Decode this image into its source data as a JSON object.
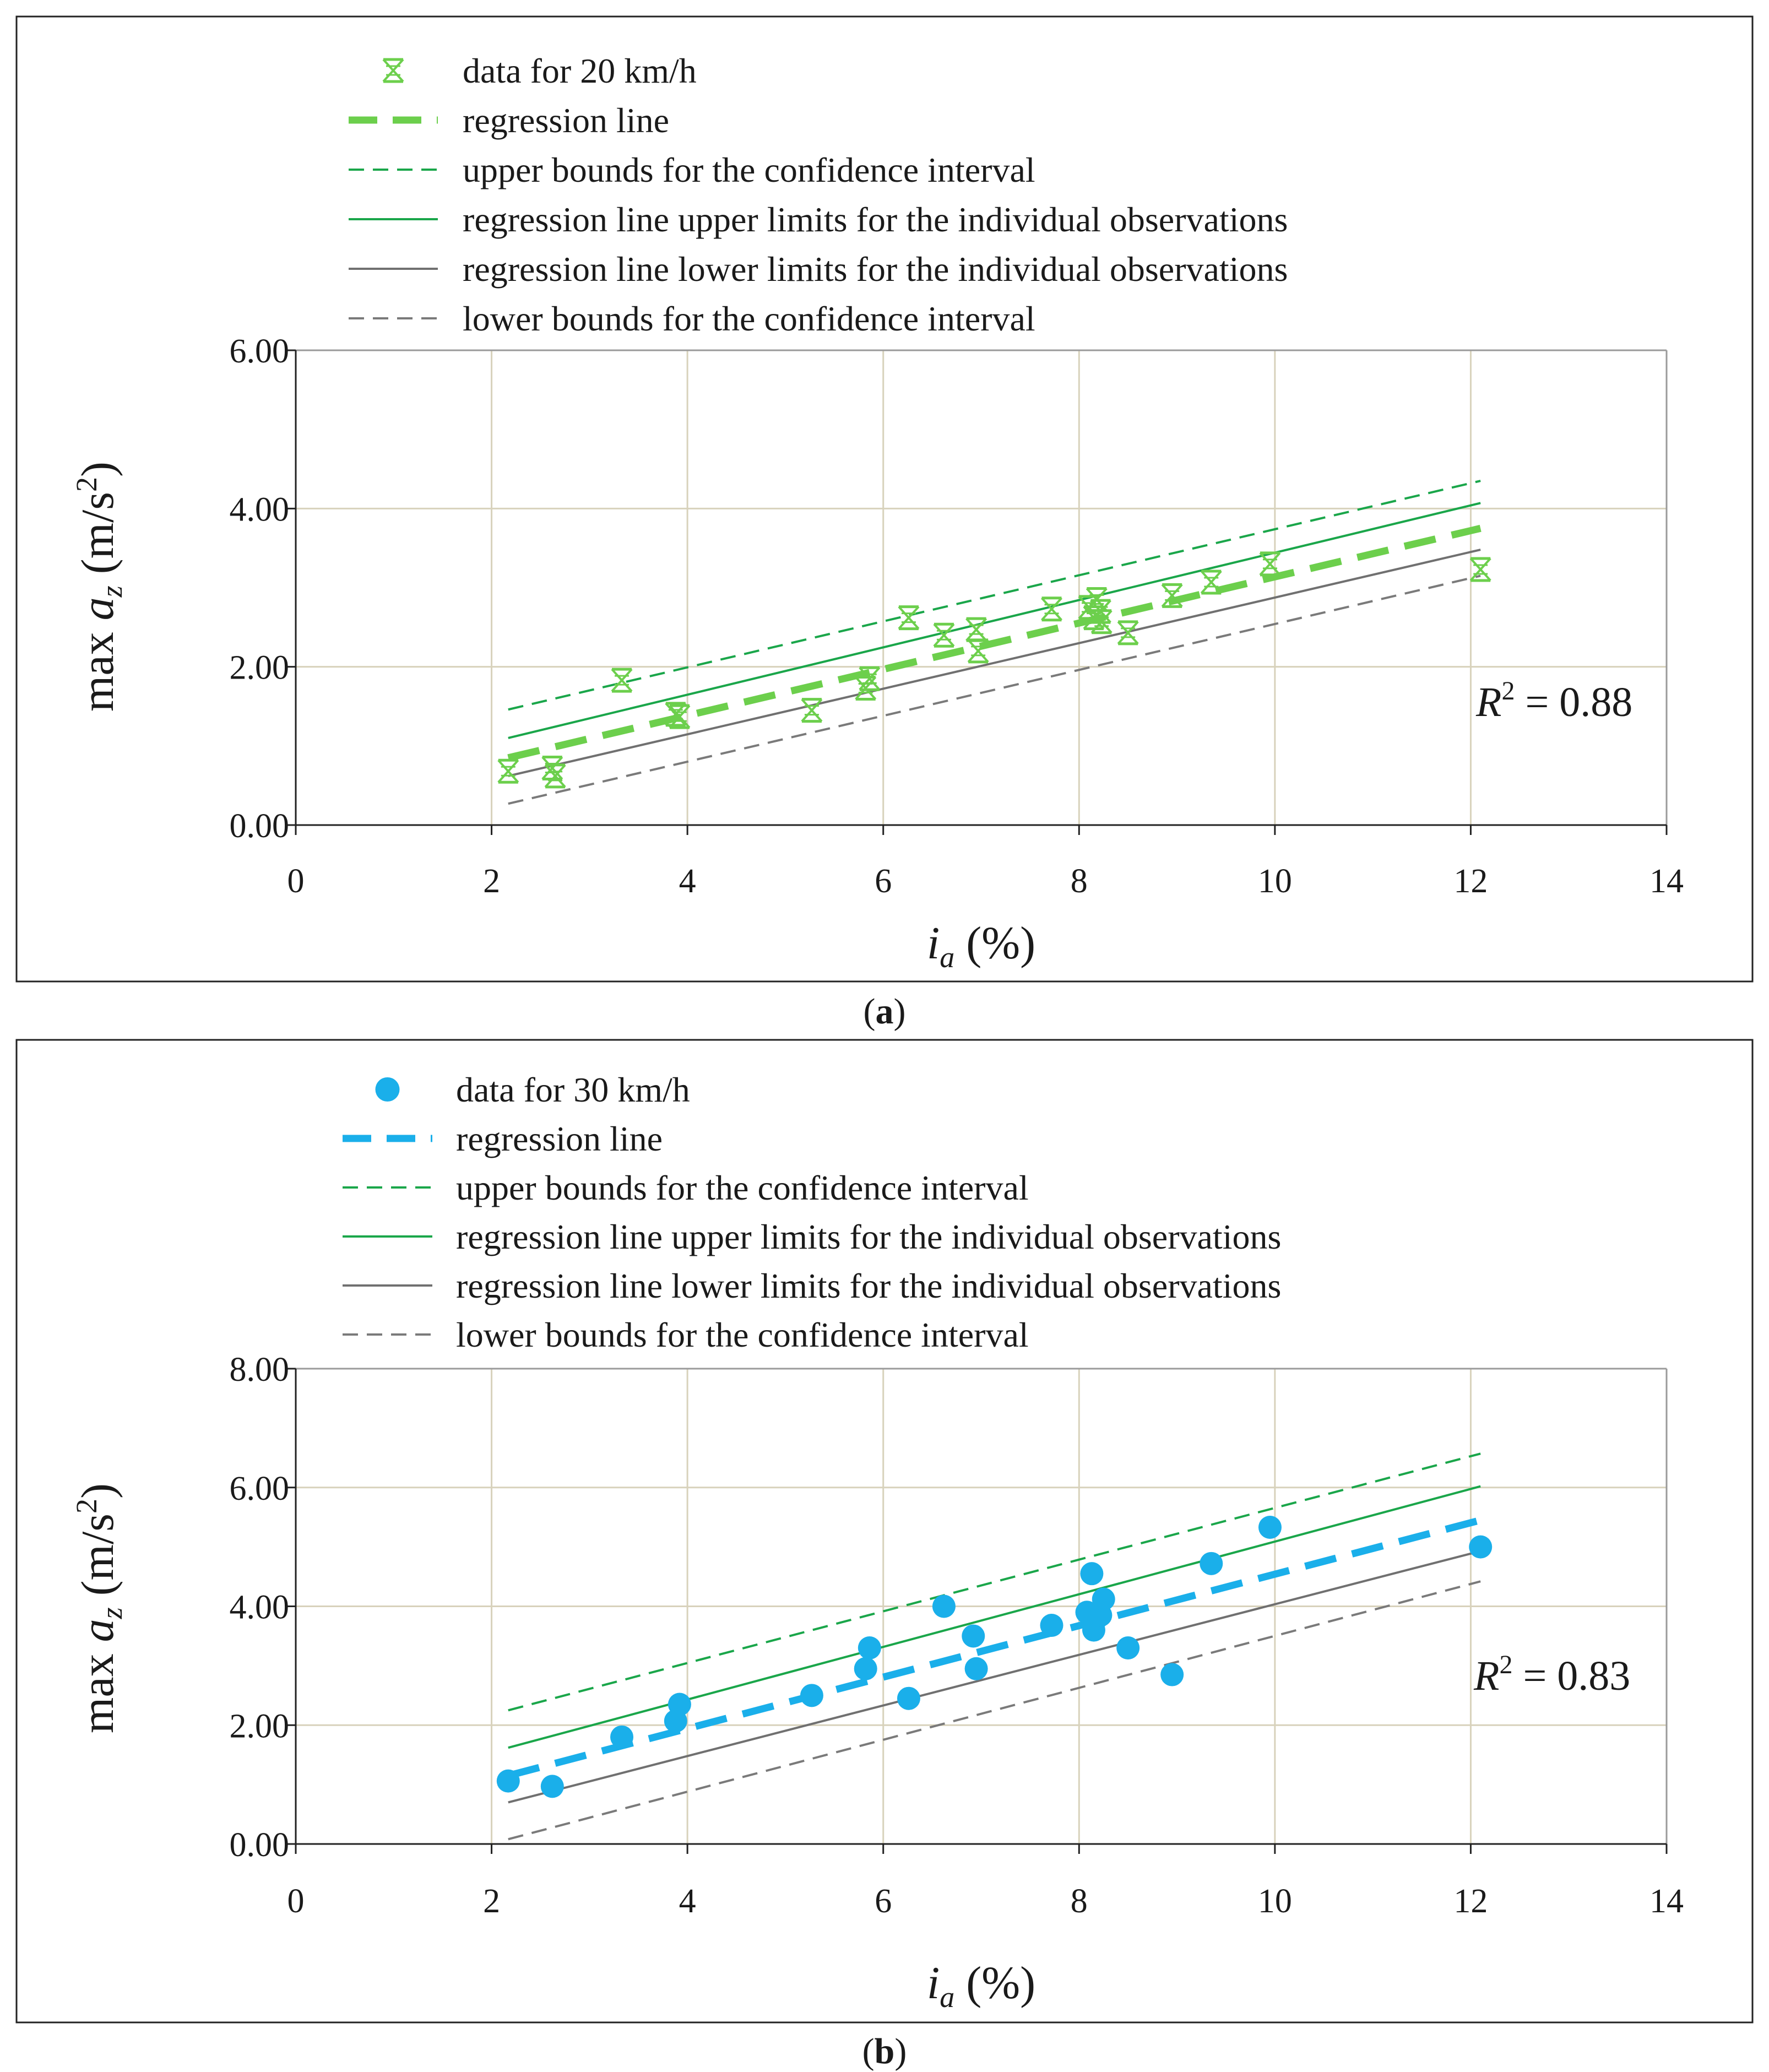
{
  "chart_data": [
    {
      "type": "scatter",
      "panel_label": "a",
      "xlabel_main": "i",
      "xlabel_sub": "a",
      "xlabel_unit": " (%)",
      "ylabel_prefix": "max ",
      "ylabel_var": "a",
      "ylabel_sub": "z",
      "ylabel_unit_open": " (m/s",
      "ylabel_unit_sup": "2",
      "ylabel_unit_close": ")",
      "xlim": [
        0,
        14
      ],
      "ylim": [
        0,
        6
      ],
      "xticks": [
        0,
        2,
        4,
        6,
        8,
        10,
        12,
        14
      ],
      "yticks": [
        0,
        2,
        4,
        6
      ],
      "xtick_labels": [
        "0",
        "2",
        "4",
        "6",
        "8",
        "10",
        "12",
        "14"
      ],
      "ytick_labels": [
        "0.00",
        "2.00",
        "4.00",
        "6.00"
      ],
      "grid": true,
      "legend_position": "top-center above plot",
      "r2_label": "R",
      "r2_sup": "2",
      "r2_value": " = 0.88",
      "points": {
        "name": "data for 20 km/h",
        "color": "#6ccf4c",
        "marker": "hourglass-box",
        "x": [
          2.17,
          2.62,
          2.65,
          3.33,
          3.88,
          3.92,
          5.27,
          5.82,
          5.86,
          6.26,
          6.62,
          6.95,
          6.97,
          7.72,
          8.1,
          8.15,
          8.18,
          8.22,
          8.23,
          8.5,
          8.95,
          9.35,
          9.95,
          12.1
        ],
        "y": [
          0.68,
          0.72,
          0.62,
          1.83,
          1.4,
          1.37,
          1.45,
          1.73,
          1.85,
          2.62,
          2.4,
          2.47,
          2.2,
          2.73,
          2.75,
          2.62,
          2.85,
          2.7,
          2.57,
          2.43,
          2.9,
          3.07,
          3.3,
          3.23
        ]
      },
      "series": [
        {
          "name": "regression line",
          "color": "#6ccf4c",
          "style": "bold-dashed",
          "x": [
            2.17,
            12.1
          ],
          "y": [
            0.85,
            3.75
          ]
        },
        {
          "name": "upper bounds for the confidence interval",
          "color": "#1aa64a",
          "style": "dashed",
          "x": [
            2.17,
            12.1
          ],
          "y": [
            1.46,
            4.35
          ]
        },
        {
          "name": "regression line upper limits for the individual observations",
          "color": "#1aa64a",
          "style": "solid",
          "x": [
            2.17,
            12.1
          ],
          "y": [
            1.1,
            4.07
          ]
        },
        {
          "name": "regression line lower limits for the individual observations",
          "color": "#707070",
          "style": "solid",
          "x": [
            2.17,
            12.1
          ],
          "y": [
            0.62,
            3.48
          ]
        },
        {
          "name": "lower bounds for the confidence interval",
          "color": "#7a7a7a",
          "style": "dashed",
          "x": [
            2.17,
            12.1
          ],
          "y": [
            0.27,
            3.15
          ]
        }
      ]
    },
    {
      "type": "scatter",
      "panel_label": "b",
      "xlabel_main": "i",
      "xlabel_sub": "a",
      "xlabel_unit": " (%)",
      "ylabel_prefix": "max ",
      "ylabel_var": "a",
      "ylabel_sub": "z",
      "ylabel_unit_open": " (m/s",
      "ylabel_unit_sup": "2",
      "ylabel_unit_close": ")",
      "xlim": [
        0,
        14
      ],
      "ylim": [
        0,
        8
      ],
      "xticks": [
        0,
        2,
        4,
        6,
        8,
        10,
        12,
        14
      ],
      "yticks": [
        0,
        2,
        4,
        6,
        8
      ],
      "xtick_labels": [
        "0",
        "2",
        "4",
        "6",
        "8",
        "10",
        "12",
        "14"
      ],
      "ytick_labels": [
        "0.00",
        "2.00",
        "4.00",
        "6.00",
        "8.00"
      ],
      "grid": true,
      "legend_position": "top-center above plot",
      "r2_label": "R",
      "r2_sup": "2",
      "r2_value": " = 0.83",
      "points": {
        "name": "data for 30 km/h",
        "color": "#1aafea",
        "marker": "circle",
        "x": [
          2.17,
          2.62,
          3.33,
          3.88,
          3.92,
          5.27,
          5.82,
          5.86,
          6.26,
          6.62,
          6.92,
          6.95,
          7.72,
          8.08,
          8.13,
          8.15,
          8.18,
          8.22,
          8.25,
          8.5,
          8.95,
          9.35,
          9.95,
          12.1
        ],
        "y": [
          1.06,
          0.97,
          1.8,
          2.07,
          2.35,
          2.5,
          2.95,
          3.3,
          2.45,
          4.0,
          3.5,
          2.95,
          3.68,
          3.9,
          4.55,
          3.6,
          3.8,
          3.85,
          4.12,
          3.3,
          2.85,
          4.72,
          5.33,
          5.0
        ]
      },
      "series": [
        {
          "name": "regression line",
          "color": "#1aafea",
          "style": "bold-dashed",
          "x": [
            2.17,
            12.1
          ],
          "y": [
            1.15,
            5.45
          ]
        },
        {
          "name": "upper bounds for the confidence interval",
          "color": "#1aa64a",
          "style": "dashed",
          "x": [
            2.17,
            12.1
          ],
          "y": [
            2.25,
            6.57
          ]
        },
        {
          "name": "regression line upper limits for the individual observations",
          "color": "#1aa64a",
          "style": "solid",
          "x": [
            2.17,
            12.1
          ],
          "y": [
            1.62,
            6.02
          ]
        },
        {
          "name": "regression line lower limits for the individual observations",
          "color": "#707070",
          "style": "solid",
          "x": [
            2.17,
            12.1
          ],
          "y": [
            0.7,
            4.93
          ]
        },
        {
          "name": "lower bounds for the confidence interval",
          "color": "#7a7a7a",
          "style": "dashed",
          "x": [
            2.17,
            12.1
          ],
          "y": [
            0.08,
            4.42
          ]
        }
      ]
    }
  ]
}
